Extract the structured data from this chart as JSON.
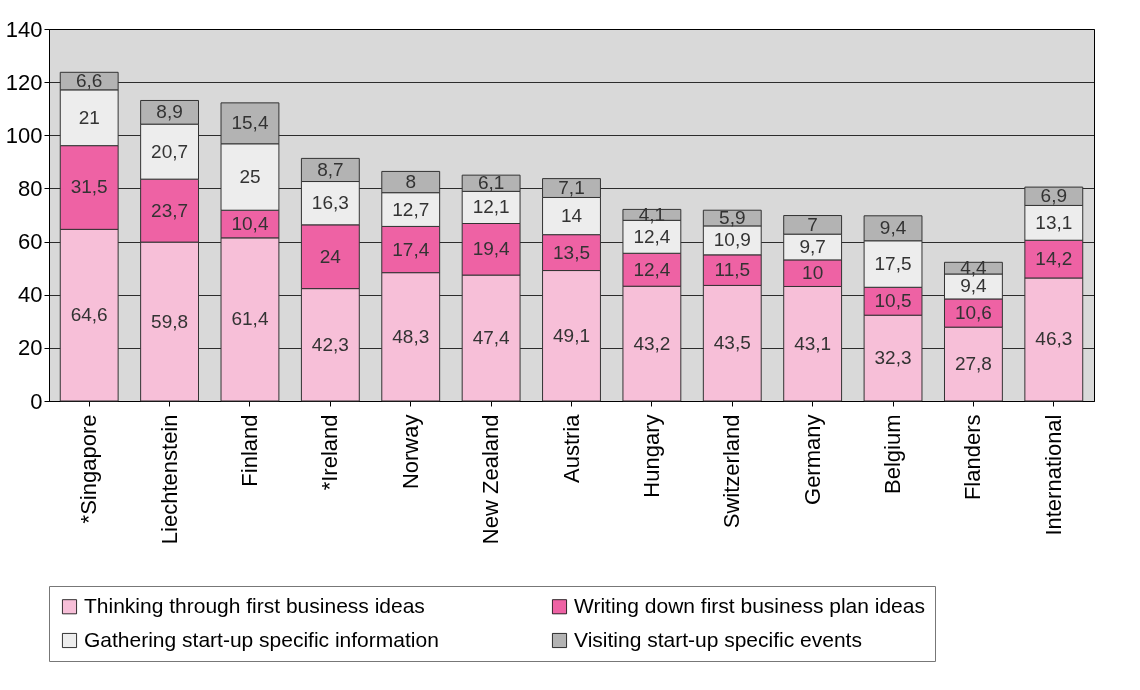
{
  "chart_data": {
    "type": "bar",
    "stacked": true,
    "categories": [
      "*Singapore",
      "Liechtenstein",
      "Finland",
      "*Ireland",
      "Norway",
      "New Zealand",
      "Austria",
      "Hungary",
      "Switzerland",
      "Germany",
      "Belgium",
      "Flanders",
      "International"
    ],
    "series": [
      {
        "name": "Thinking through first business ideas",
        "color": "#f7bfd8",
        "values": [
          64.6,
          59.8,
          61.4,
          42.3,
          48.3,
          47.4,
          49.1,
          43.2,
          43.5,
          43.1,
          32.3,
          27.8,
          46.3
        ],
        "value_labels": [
          "64,6",
          "59,8",
          "61,4",
          "42,3",
          "48,3",
          "47,4",
          "49,1",
          "43,2",
          "43,5",
          "43,1",
          "32,3",
          "27,8",
          "46,3"
        ]
      },
      {
        "name": "Writing down first business plan ideas",
        "color": "#ee62a4",
        "values": [
          31.5,
          23.7,
          10.4,
          24,
          17.4,
          19.4,
          13.5,
          12.4,
          11.5,
          10,
          10.5,
          10.6,
          14.2
        ],
        "value_labels": [
          "31,5",
          "23,7",
          "10,4",
          "24",
          "17,4",
          "19,4",
          "13,5",
          "12,4",
          "11,5",
          "10",
          "10,5",
          "10,6",
          "14,2"
        ]
      },
      {
        "name": "Gathering start-up specific information",
        "color": "#ededed",
        "values": [
          21,
          20.7,
          25,
          16.3,
          12.7,
          12.1,
          14,
          12.4,
          10.9,
          9.7,
          17.5,
          9.4,
          13.1
        ],
        "value_labels": [
          "21",
          "20,7",
          "25",
          "16,3",
          "12,7",
          "12,1",
          "14",
          "12,4",
          "10,9",
          "9,7",
          "17,5",
          "9,4",
          "13,1"
        ]
      },
      {
        "name": "Visiting start-up specific events",
        "color": "#b3b3b3",
        "values": [
          6.6,
          8.9,
          15.4,
          8.7,
          8,
          6.1,
          7.1,
          4.1,
          5.9,
          7,
          9.4,
          4.4,
          6.9
        ],
        "value_labels": [
          "6,6",
          "8,9",
          "15,4",
          "8,7",
          "8",
          "6,1",
          "7,1",
          "4,1",
          "5,9",
          "7",
          "9,4",
          "4,4",
          "6,9"
        ]
      }
    ],
    "ylim": [
      0,
      140
    ],
    "yticks": [
      0,
      20,
      40,
      60,
      80,
      100,
      120,
      140
    ],
    "grid": "y",
    "legend": "bottom"
  }
}
